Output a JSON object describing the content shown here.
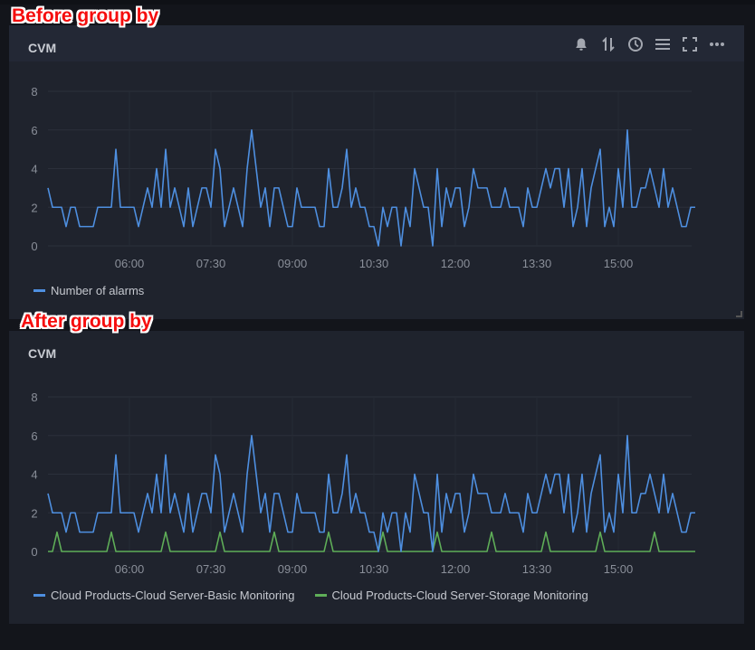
{
  "annotations": {
    "before": "Before group by",
    "after": "After group by"
  },
  "panels": [
    {
      "title": "CVM",
      "toolbar": [
        "bell-icon",
        "sort-icon",
        "clock-icon",
        "list-icon",
        "fullscreen-icon",
        "more-icon"
      ]
    },
    {
      "title": "CVM"
    }
  ],
  "colors": {
    "blue": "#4e8fe0",
    "green": "#5fae58"
  },
  "chart_data": [
    {
      "type": "line",
      "title": "CVM",
      "x_start": "04:30",
      "interval_minutes": 5,
      "xticks": [
        "06:00",
        "07:30",
        "09:00",
        "10:30",
        "12:00",
        "13:30",
        "15:00"
      ],
      "yticks": [
        "0",
        "2",
        "4",
        "6",
        "8"
      ],
      "ylim": [
        0,
        8
      ],
      "grid": true,
      "legend_position": "bottom-left",
      "series": [
        {
          "name": "Number of alarms",
          "color": "#4e8fe0",
          "values": [
            3,
            2,
            2,
            2,
            1,
            2,
            2,
            1,
            1,
            1,
            1,
            2,
            2,
            2,
            2,
            5,
            2,
            2,
            2,
            2,
            1,
            2,
            3,
            2,
            4,
            2,
            5,
            2,
            3,
            2,
            1,
            3,
            1,
            2,
            3,
            3,
            2,
            5,
            4,
            1,
            2,
            3,
            2,
            1,
            4,
            6,
            4,
            2,
            3,
            1,
            3,
            3,
            2,
            1,
            1,
            3,
            2,
            2,
            2,
            2,
            1,
            1,
            4,
            2,
            2,
            3,
            5,
            2,
            3,
            2,
            2,
            1,
            1,
            0,
            2,
            1,
            2,
            2,
            0,
            2,
            1,
            4,
            3,
            2,
            2,
            0,
            4,
            1,
            3,
            2,
            3,
            3,
            1,
            2,
            4,
            3,
            3,
            3,
            2,
            2,
            2,
            3,
            2,
            2,
            2,
            1,
            3,
            2,
            2,
            3,
            4,
            3,
            4,
            4,
            2,
            4,
            1,
            2,
            4,
            1,
            3,
            4,
            5,
            1,
            2,
            1,
            4,
            2,
            6,
            2,
            2,
            3,
            3,
            4,
            3,
            2,
            4,
            2,
            3,
            2,
            1,
            1,
            2,
            2
          ]
        }
      ]
    },
    {
      "type": "line",
      "title": "CVM",
      "x_start": "04:30",
      "interval_minutes": 5,
      "xticks": [
        "06:00",
        "07:30",
        "09:00",
        "10:30",
        "12:00",
        "13:30",
        "15:00"
      ],
      "yticks": [
        "0",
        "2",
        "4",
        "6",
        "8"
      ],
      "ylim": [
        0,
        8
      ],
      "grid": true,
      "legend_position": "bottom-left",
      "series": [
        {
          "name": "Cloud Products-Cloud Server-Basic Monitoring",
          "color": "#4e8fe0",
          "values": [
            3,
            2,
            2,
            2,
            1,
            2,
            2,
            1,
            1,
            1,
            1,
            2,
            2,
            2,
            2,
            5,
            2,
            2,
            2,
            2,
            1,
            2,
            3,
            2,
            4,
            2,
            5,
            2,
            3,
            2,
            1,
            3,
            1,
            2,
            3,
            3,
            2,
            5,
            4,
            1,
            2,
            3,
            2,
            1,
            4,
            6,
            4,
            2,
            3,
            1,
            3,
            3,
            2,
            1,
            1,
            3,
            2,
            2,
            2,
            2,
            1,
            1,
            4,
            2,
            2,
            3,
            5,
            2,
            3,
            2,
            2,
            1,
            1,
            0,
            2,
            1,
            2,
            2,
            0,
            2,
            1,
            4,
            3,
            2,
            2,
            0,
            4,
            1,
            3,
            2,
            3,
            3,
            1,
            2,
            4,
            3,
            3,
            3,
            2,
            2,
            2,
            3,
            2,
            2,
            2,
            1,
            3,
            2,
            2,
            3,
            4,
            3,
            4,
            4,
            2,
            4,
            1,
            2,
            4,
            1,
            3,
            4,
            5,
            1,
            2,
            1,
            4,
            2,
            6,
            2,
            2,
            3,
            3,
            4,
            3,
            2,
            4,
            2,
            3,
            2,
            1,
            1,
            2,
            2
          ]
        },
        {
          "name": "Cloud Products-Cloud Server-Storage Monitoring",
          "color": "#5fae58",
          "values": [
            0,
            0,
            1,
            0,
            0,
            0,
            0,
            0,
            0,
            0,
            0,
            0,
            0,
            0,
            1,
            0,
            0,
            0,
            0,
            0,
            0,
            0,
            0,
            0,
            0,
            0,
            1,
            0,
            0,
            0,
            0,
            0,
            0,
            0,
            0,
            0,
            0,
            0,
            1,
            0,
            0,
            0,
            0,
            0,
            0,
            0,
            0,
            0,
            0,
            0,
            1,
            0,
            0,
            0,
            0,
            0,
            0,
            0,
            0,
            0,
            0,
            0,
            1,
            0,
            0,
            0,
            0,
            0,
            0,
            0,
            0,
            0,
            0,
            0,
            1,
            0,
            0,
            0,
            0,
            0,
            0,
            0,
            0,
            0,
            0,
            0,
            1,
            0,
            0,
            0,
            0,
            0,
            0,
            0,
            0,
            0,
            0,
            0,
            1,
            0,
            0,
            0,
            0,
            0,
            0,
            0,
            0,
            0,
            0,
            0,
            1,
            0,
            0,
            0,
            0,
            0,
            0,
            0,
            0,
            0,
            0,
            0,
            1,
            0,
            0,
            0,
            0,
            0,
            0,
            0,
            0,
            0,
            0,
            0,
            1,
            0,
            0,
            0,
            0,
            0,
            0,
            0,
            0,
            0
          ]
        }
      ]
    }
  ]
}
